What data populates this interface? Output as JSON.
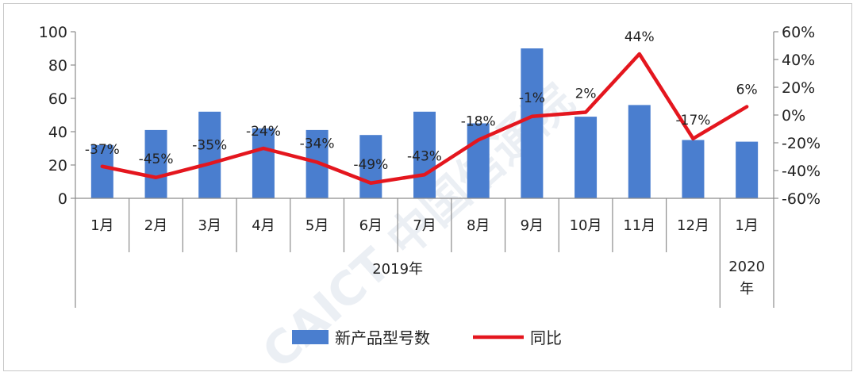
{
  "chart_data": {
    "type": "bar",
    "categories": [
      "1月",
      "2月",
      "3月",
      "4月",
      "5月",
      "6月",
      "7月",
      "8月",
      "9月",
      "10月",
      "11月",
      "12月",
      "1月"
    ],
    "groups": [
      {
        "label": "2019年",
        "lines": [
          "2019年"
        ],
        "span": [
          0,
          11
        ]
      },
      {
        "label": "2020年",
        "lines": [
          "2020",
          "年"
        ],
        "span": [
          12,
          12
        ]
      }
    ],
    "series": [
      {
        "name": "新产品型号数",
        "type": "bar",
        "axis": "left",
        "values": [
          32,
          41,
          52,
          42,
          41,
          38,
          52,
          45,
          90,
          49,
          56,
          35,
          34
        ]
      },
      {
        "name": "同比",
        "type": "line",
        "axis": "right",
        "values": [
          -37,
          -45,
          -35,
          -24,
          -34,
          -49,
          -43,
          -18,
          -1,
          2,
          44,
          -17,
          6
        ],
        "labels": [
          "-37%",
          "-45%",
          "-35%",
          "-24%",
          "-34%",
          "-49%",
          "-43%",
          "-18%",
          "-1%",
          "2%",
          "44%",
          "-17%",
          "6%"
        ]
      }
    ],
    "y_left": {
      "min": 0,
      "max": 100,
      "step": 20,
      "ticks": [
        "0",
        "20",
        "40",
        "60",
        "80",
        "100"
      ]
    },
    "y_right": {
      "min": -60,
      "max": 60,
      "step": 20,
      "ticks": [
        "-60%",
        "-40%",
        "-20%",
        "0%",
        "20%",
        "40%",
        "60%"
      ]
    },
    "legend_position": "bottom",
    "grid": false,
    "colors": {
      "bar": "#4a7ecf",
      "line": "#e4161e",
      "axis": "#8c8c8c"
    },
    "watermark": "CAICT 中国信通院"
  }
}
